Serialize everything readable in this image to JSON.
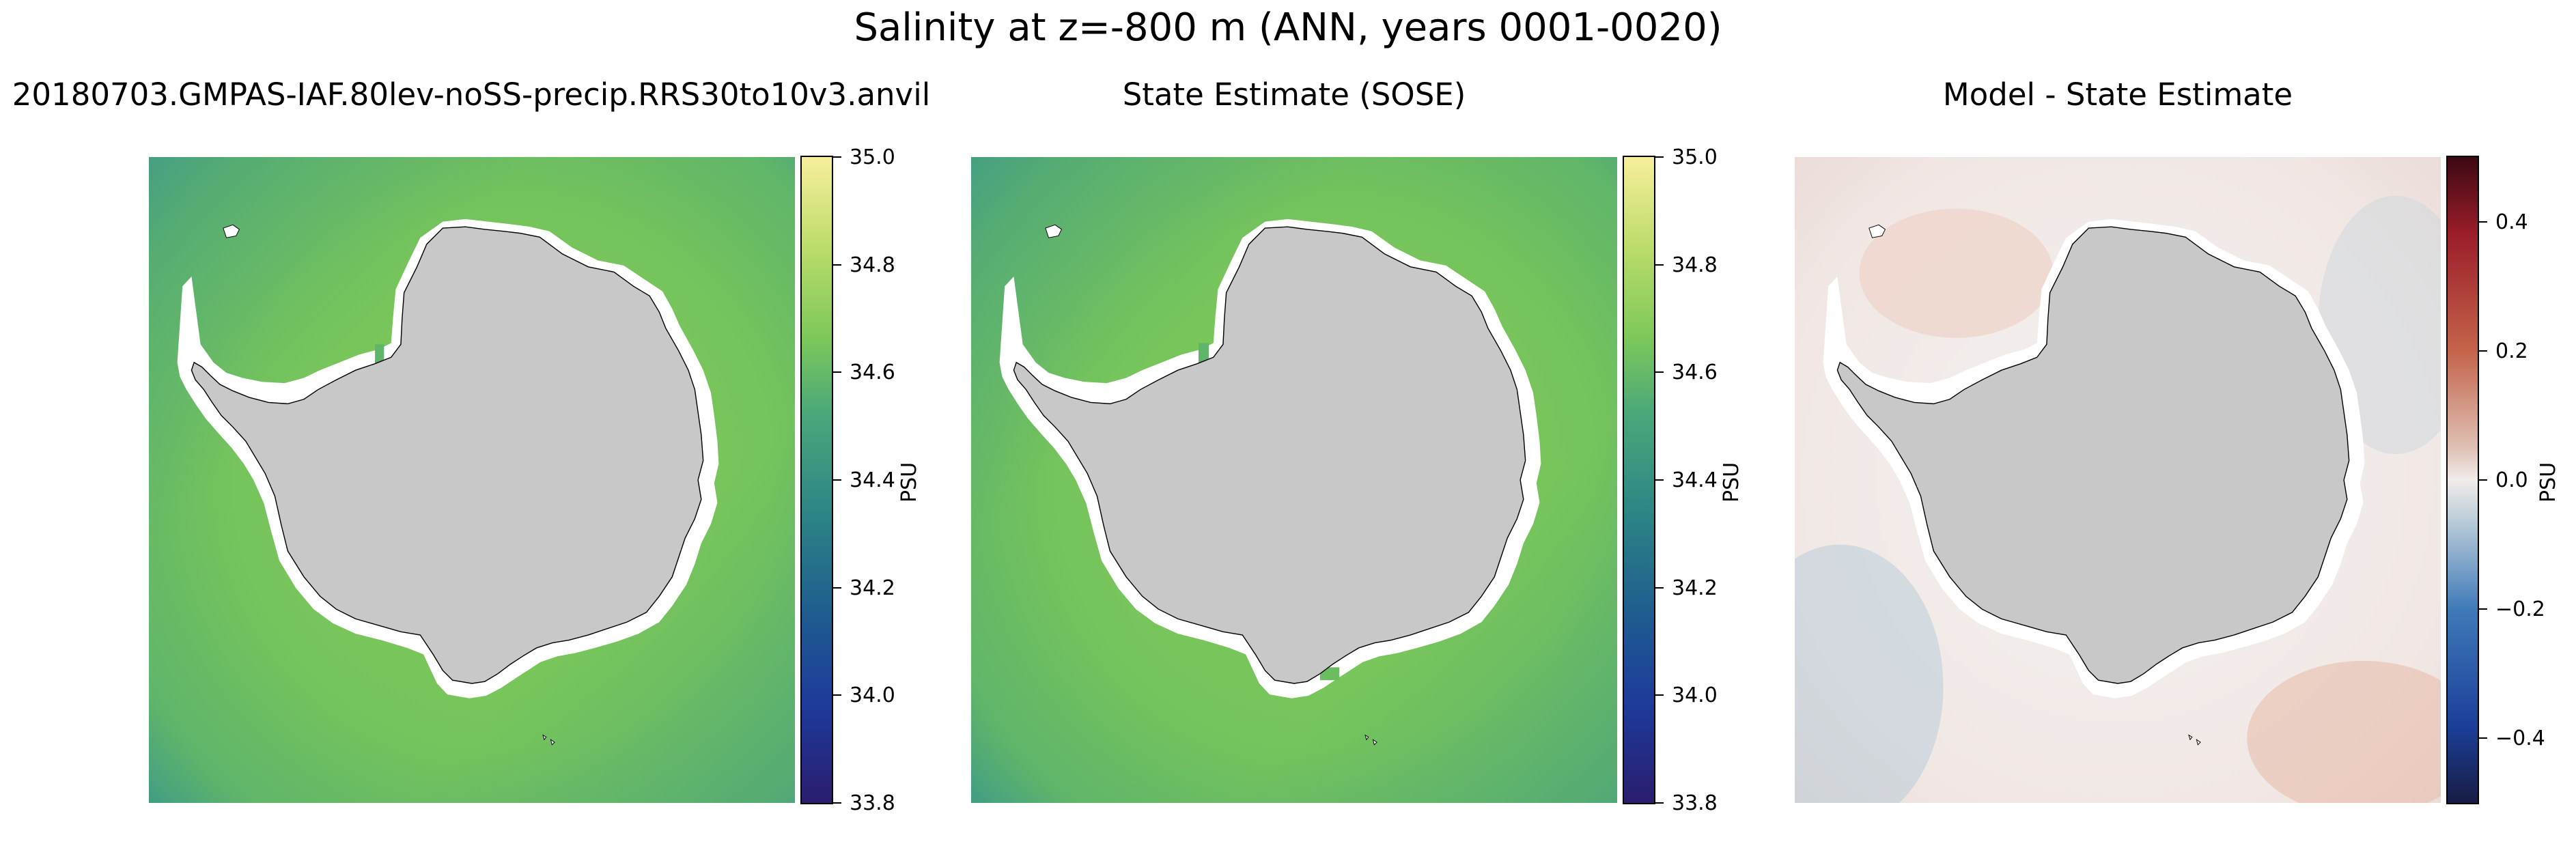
{
  "figure": {
    "title": "Salinity at z=-800 m (ANN, years 0001-0020)"
  },
  "panels": [
    {
      "title": "20180703.GMPAS-IAF.80lev-noSS-precip.RRS30to10v3.anvil",
      "colorbar": {
        "label": "PSU",
        "ticks": [
          "35.0",
          "34.8",
          "34.6",
          "34.4",
          "34.2",
          "34.0",
          "33.8"
        ],
        "colormap": "haline"
      }
    },
    {
      "title": "State Estimate (SOSE)",
      "colorbar": {
        "label": "PSU",
        "ticks": [
          "35.0",
          "34.8",
          "34.6",
          "34.4",
          "34.2",
          "34.0",
          "33.8"
        ],
        "colormap": "haline"
      }
    },
    {
      "title": "Model - State Estimate",
      "colorbar": {
        "label": "PSU",
        "ticks": [
          "0.4",
          "0.2",
          "0.0",
          "−0.2",
          "−0.4"
        ],
        "colormap": "balance"
      }
    }
  ],
  "colors": {
    "land": "#c8c8c8",
    "ocean_main": "#7cc85a",
    "ocean_dark": "#3f9b86",
    "diff_background": "#f2ecea",
    "diff_positive": "#e7b9a8",
    "diff_negative": "#b9ccd8"
  }
}
